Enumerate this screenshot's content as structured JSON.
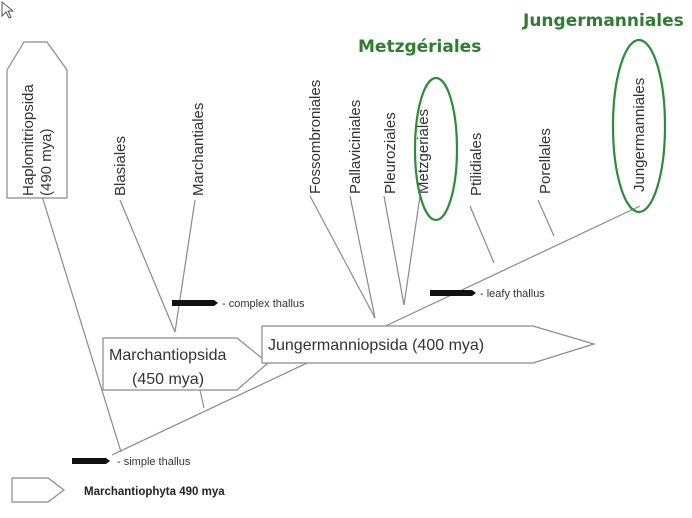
{
  "highlights": {
    "metzgeriales": "Metzgériales",
    "jungermanniales": "Jungermanniales"
  },
  "orders": {
    "haplomitriopsida_name": "Haplomitriopsida",
    "haplomitriopsida_age": "(490 mya)",
    "blasiales": "Blasiales",
    "marchantiales": "Marchantiales",
    "fossombroniales": "Fossombroniales",
    "pallaviciniales": "Pallaviciniales",
    "pleuroziales": "Pleuroziales",
    "metzgeriales": "Metzgeriales",
    "ptilidiales": "Ptilidiales",
    "porellales": "Porellales",
    "jungermanniales": "Jungermanniales"
  },
  "clades": {
    "marchantiopsida_name": "Marchantiopsida",
    "marchantiopsida_age": "(450 mya)",
    "jungermanniopsida": "Jungermanniopsida (400 mya)"
  },
  "annotations": {
    "complex_thallus": "- complex thallus",
    "leafy_thallus": "- leafy thallus",
    "simple_thallus": "- simple thallus"
  },
  "root": {
    "label": "Marchantiophyta 490 mya"
  },
  "colors": {
    "highlight": "#2e7d32",
    "ring": "#2e8b3a",
    "line": "#8a8a8a"
  }
}
